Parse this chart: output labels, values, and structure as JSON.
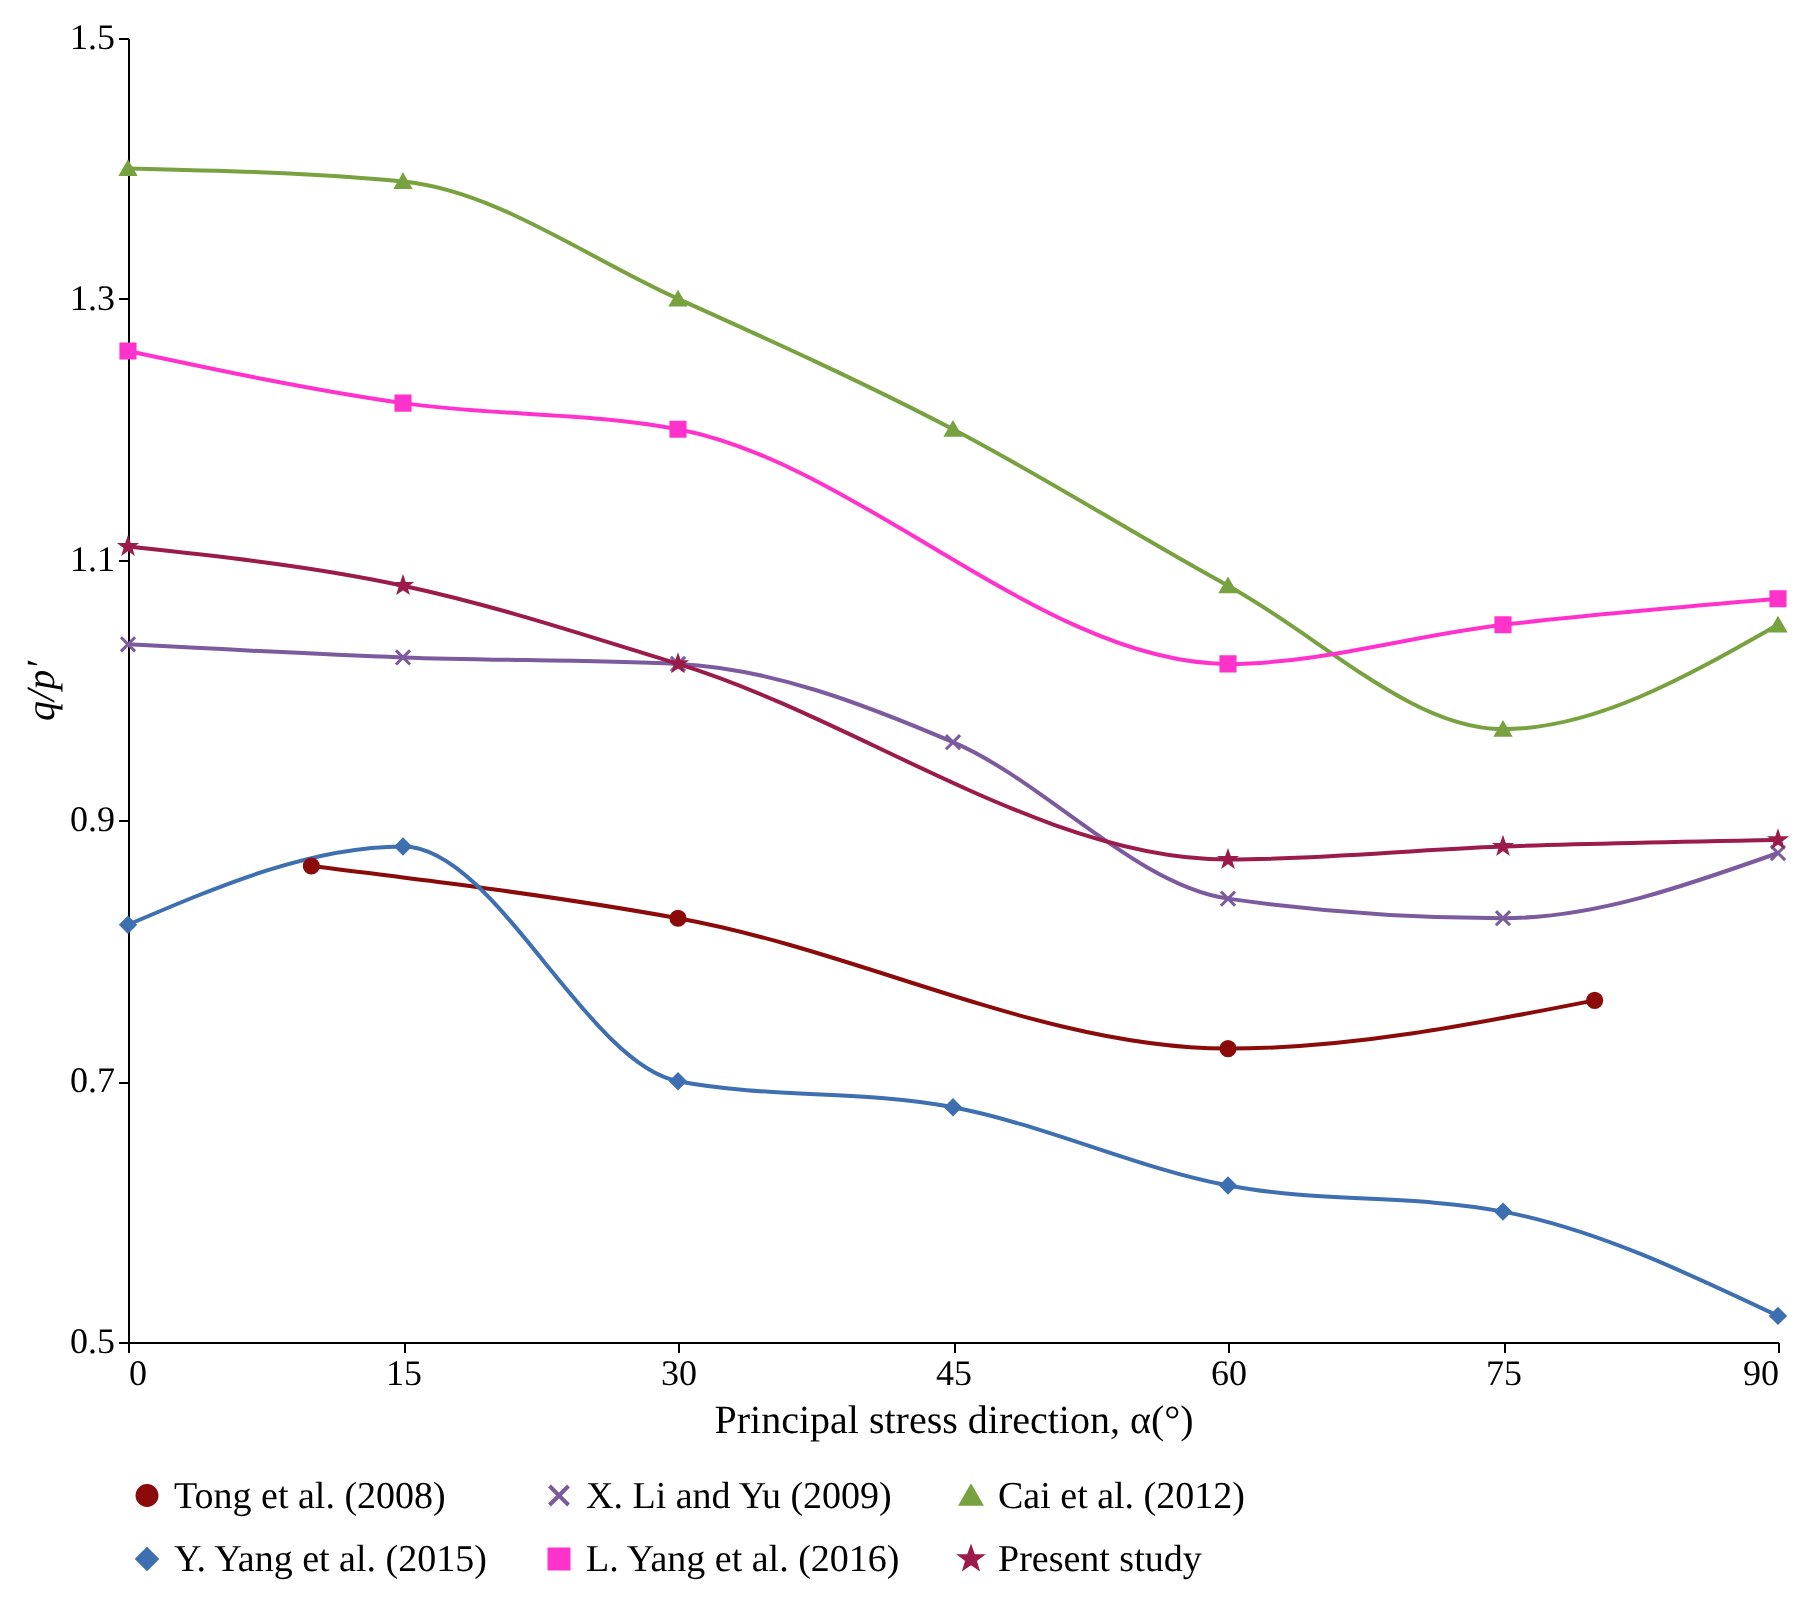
{
  "chart_data": {
    "type": "line",
    "xlabel": "Principal stress direction, α(°)",
    "ylabel": "q/p′",
    "xlim": [
      0,
      90
    ],
    "xticks": [
      0,
      15,
      30,
      45,
      60,
      75,
      90
    ],
    "ylim": [
      0.5,
      1.5
    ],
    "yticks": [
      0.5,
      0.7,
      0.9,
      1.1,
      1.3,
      1.5
    ],
    "grid": false,
    "legend": "bottom",
    "line_style": "solid",
    "series": [
      {
        "name": "Tong et al. (2008)",
        "color": "#8b0a0a",
        "marker": "circle",
        "x": [
          10,
          30,
          60,
          80
        ],
        "values": [
          0.865,
          0.825,
          0.725,
          0.762
        ]
      },
      {
        "name": "X. Li and Yu (2009)",
        "color": "#7b5a9e",
        "marker": "cross",
        "x": [
          0,
          15,
          30,
          45,
          60,
          75,
          90
        ],
        "values": [
          1.035,
          1.025,
          1.02,
          0.96,
          0.84,
          0.825,
          0.875
        ]
      },
      {
        "name": "Cai et al. (2012)",
        "color": "#77a23f",
        "marker": "triangle",
        "x": [
          0,
          15,
          30,
          45,
          60,
          75,
          90
        ],
        "values": [
          1.4,
          1.39,
          1.3,
          1.2,
          1.08,
          0.97,
          1.05
        ]
      },
      {
        "name": "Y. Yang et al. (2015)",
        "color": "#3e6fb0",
        "marker": "diamond",
        "x": [
          0,
          15,
          30,
          45,
          60,
          75,
          90
        ],
        "values": [
          0.82,
          0.88,
          0.7,
          0.68,
          0.62,
          0.6,
          0.52
        ]
      },
      {
        "name": "L. Yang et al. (2016)",
        "color": "#ff33cc",
        "marker": "square",
        "x": [
          0,
          15,
          30,
          60,
          75,
          90
        ],
        "values": [
          1.26,
          1.22,
          1.2,
          1.02,
          1.05,
          1.07
        ]
      },
      {
        "name": "Present study",
        "color": "#9b1b4b",
        "marker": "star",
        "x": [
          0,
          15,
          30,
          60,
          75,
          90
        ],
        "values": [
          1.11,
          1.08,
          1.02,
          0.87,
          0.88,
          0.885
        ]
      }
    ]
  }
}
